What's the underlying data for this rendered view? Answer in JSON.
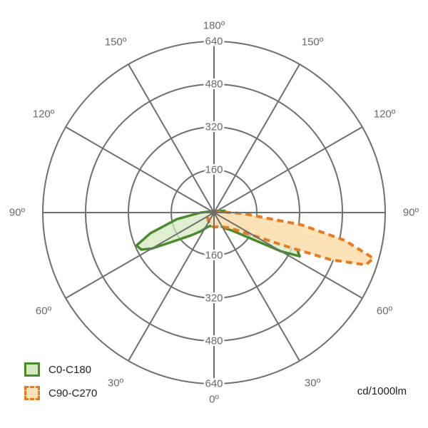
{
  "chart_data": {
    "type": "polar",
    "title": "",
    "units": "cd/1000lm",
    "radial_ticks": [
      "160",
      "320",
      "480",
      "640"
    ],
    "radial_max": 640,
    "angle_labels": {
      "top": "180º",
      "bottom": "0º",
      "upper_left": [
        "150º",
        "120º"
      ],
      "upper_right": [
        "150º",
        "120º"
      ],
      "left": "90º",
      "right": "90º",
      "lower_left": [
        "60º",
        "30º"
      ],
      "lower_right": [
        "60º",
        "30º"
      ]
    },
    "legend_position": "bottom-left",
    "series": [
      {
        "name": "C0-C180",
        "color": "#4a8b2c",
        "fill": "#d5e8c0",
        "style": "solid",
        "points": [
          {
            "side": "right",
            "angle": 180,
            "value": 0
          },
          {
            "side": "right",
            "angle": 150,
            "value": 5
          },
          {
            "side": "right",
            "angle": 120,
            "value": 10
          },
          {
            "side": "right",
            "angle": 100,
            "value": 40
          },
          {
            "side": "right",
            "angle": 90,
            "value": 45
          },
          {
            "side": "right",
            "angle": 80,
            "value": 110
          },
          {
            "side": "right",
            "angle": 72,
            "value": 250
          },
          {
            "side": "right",
            "angle": 66,
            "value": 340
          },
          {
            "side": "right",
            "angle": 63,
            "value": 360
          },
          {
            "side": "right",
            "angle": 60,
            "value": 290
          },
          {
            "side": "right",
            "angle": 55,
            "value": 170
          },
          {
            "side": "right",
            "angle": 45,
            "value": 95
          },
          {
            "side": "right",
            "angle": 35,
            "value": 72
          },
          {
            "side": "right",
            "angle": 25,
            "value": 55
          },
          {
            "side": "right",
            "angle": 15,
            "value": 48
          },
          {
            "side": "right",
            "angle": 5,
            "value": 45
          },
          {
            "side": "right",
            "angle": 0,
            "value": 45
          },
          {
            "side": "left",
            "angle": 5,
            "value": 46
          },
          {
            "side": "left",
            "angle": 15,
            "value": 52
          },
          {
            "side": "left",
            "angle": 25,
            "value": 60
          },
          {
            "side": "left",
            "angle": 35,
            "value": 85
          },
          {
            "side": "left",
            "angle": 45,
            "value": 120
          },
          {
            "side": "left",
            "angle": 55,
            "value": 190
          },
          {
            "side": "left",
            "angle": 60,
            "value": 270
          },
          {
            "side": "left",
            "angle": 63,
            "value": 305
          },
          {
            "side": "left",
            "angle": 67,
            "value": 315
          },
          {
            "side": "left",
            "angle": 72,
            "value": 250
          },
          {
            "side": "left",
            "angle": 80,
            "value": 140
          },
          {
            "side": "left",
            "angle": 90,
            "value": 50
          },
          {
            "side": "left",
            "angle": 100,
            "value": 20
          },
          {
            "side": "left",
            "angle": 120,
            "value": 10
          },
          {
            "side": "left",
            "angle": 150,
            "value": 5
          },
          {
            "side": "left",
            "angle": 180,
            "value": 0
          }
        ]
      },
      {
        "name": "C90-C270",
        "color": "#e87a20",
        "fill": "#fde2b8",
        "style": "dashed",
        "points": [
          {
            "side": "right",
            "angle": 180,
            "value": 0
          },
          {
            "side": "right",
            "angle": 120,
            "value": 10
          },
          {
            "side": "right",
            "angle": 95,
            "value": 30
          },
          {
            "side": "right",
            "angle": 88,
            "value": 110
          },
          {
            "side": "right",
            "angle": 82,
            "value": 330
          },
          {
            "side": "right",
            "angle": 78,
            "value": 500
          },
          {
            "side": "right",
            "angle": 74,
            "value": 620
          },
          {
            "side": "right",
            "angle": 71,
            "value": 600
          },
          {
            "side": "right",
            "angle": 68,
            "value": 470
          },
          {
            "side": "right",
            "angle": 65,
            "value": 300
          },
          {
            "side": "right",
            "angle": 58,
            "value": 150
          },
          {
            "side": "right",
            "angle": 45,
            "value": 80
          },
          {
            "side": "right",
            "angle": 30,
            "value": 62
          },
          {
            "side": "right",
            "angle": 15,
            "value": 55
          },
          {
            "side": "right",
            "angle": 0,
            "value": 55
          },
          {
            "side": "left",
            "angle": 10,
            "value": 50
          },
          {
            "side": "left",
            "angle": 25,
            "value": 42
          },
          {
            "side": "left",
            "angle": 40,
            "value": 35
          },
          {
            "side": "left",
            "angle": 60,
            "value": 28
          },
          {
            "side": "left",
            "angle": 75,
            "value": 20
          },
          {
            "side": "left",
            "angle": 90,
            "value": 5
          },
          {
            "side": "left",
            "angle": 180,
            "value": 0
          }
        ]
      }
    ]
  }
}
